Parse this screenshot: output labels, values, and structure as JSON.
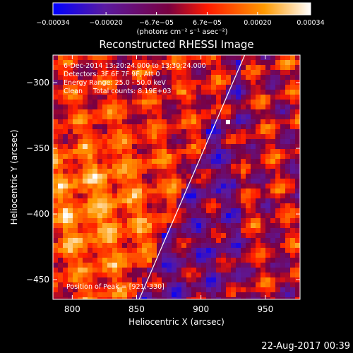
{
  "colorbar": {
    "tick_labels": [
      "−0.00034",
      "−0.00020",
      "−6.7e−05",
      "6.7e−05",
      "0.00020",
      "0.00034"
    ],
    "tick_values": [
      -0.00034,
      -0.0002,
      -6.7e-05,
      6.7e-05,
      0.0002,
      0.00034
    ],
    "range": [
      -0.00034,
      0.00034
    ],
    "units": "(photons cm⁻² s⁻¹ asec⁻²)",
    "palette": [
      "#0000ff",
      "#5a1aa0",
      "#7a0040",
      "#ff1a00",
      "#ff9a00",
      "#ffffff"
    ]
  },
  "chart_data": {
    "type": "heatmap",
    "title": "Reconstructed RHESSI Image",
    "xlabel": "Heliocentric X (arcsec)",
    "ylabel": "Heliocentric Y (arcsec)",
    "xlim": [
      785,
      977
    ],
    "ylim": [
      -465,
      -279
    ],
    "xticks": [
      800,
      850,
      900,
      950
    ],
    "yticks": [
      -300,
      -350,
      -400,
      -450
    ],
    "xtick_labels": [
      "800",
      "850",
      "900",
      "950"
    ],
    "ytick_labels": [
      "−300",
      "−350",
      "−400",
      "−450"
    ],
    "annotations": [
      "6-Dec-2014 13:20:24.000 to 13:30:24.000",
      "Detectors: 3F 6F 7F 9F, Att 0",
      "Energy Range: 25.0 - 50.0 keV",
      "Clean     Total counts: 8.19E+03"
    ],
    "peak_label": "Position of Peak = [921,-330]",
    "peak": [
      921,
      -330
    ],
    "limb_line": [
      [
        852,
        -465
      ],
      [
        934,
        -279
      ]
    ]
  },
  "footer": {
    "timestamp": "22-Aug-2017 00:39"
  }
}
